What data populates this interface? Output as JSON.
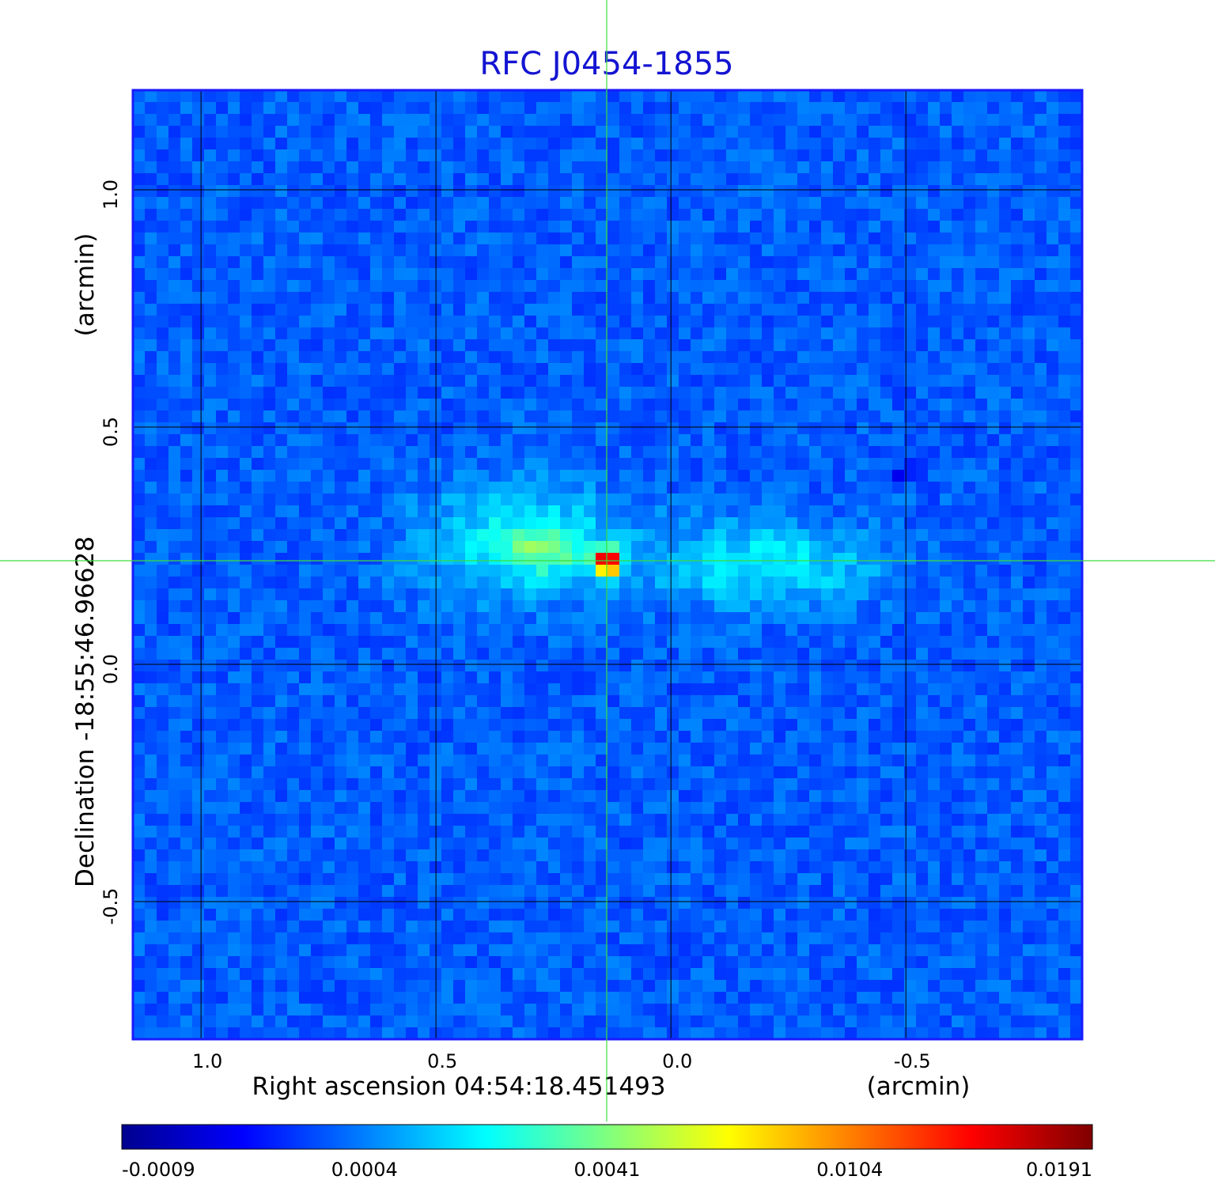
{
  "chart_data": {
    "type": "heatmap",
    "title": "RFC J0454-1855",
    "xlabel": "Right ascension  04:54:18.451493",
    "xunit": "(arcmin)",
    "ylabel": "Declination  -18:55:46.96628",
    "yunit": "(arcmin)",
    "xlim": [
      1.145,
      -0.875
    ],
    "ylim": [
      -0.79,
      1.21
    ],
    "xticks": [
      1.0,
      0.5,
      0.0,
      -0.5
    ],
    "xtick_labels": [
      "1.0",
      "0.5",
      "0.0",
      "-0.5"
    ],
    "yticks": [
      1.0,
      0.5,
      0.0,
      -0.5
    ],
    "ytick_labels": [
      "1.0",
      "0.5",
      "0.0",
      "-0.5"
    ],
    "grid": true,
    "crosshair": {
      "x": 0.135,
      "y": 0.215
    },
    "colormap": "jet",
    "colorbar": {
      "location": "bottom",
      "tick_labels": [
        "-0.0009",
        "0.0004",
        "0.0041",
        "0.0104",
        "0.0191"
      ]
    },
    "features": [
      {
        "kind": "background",
        "value": 0.0001
      },
      {
        "kind": "core",
        "x": 0.135,
        "y": 0.215,
        "peak": 0.0191
      },
      {
        "kind": "lobe",
        "x": 0.32,
        "y": 0.26,
        "peak": 0.002
      },
      {
        "kind": "lobe",
        "x": -0.2,
        "y": 0.21,
        "peak": 0.0009
      }
    ],
    "colors": {
      "title": "#1414d2",
      "frame": "#1a1aff",
      "grid": "#000000",
      "crosshair": "#3cdc3c"
    }
  }
}
